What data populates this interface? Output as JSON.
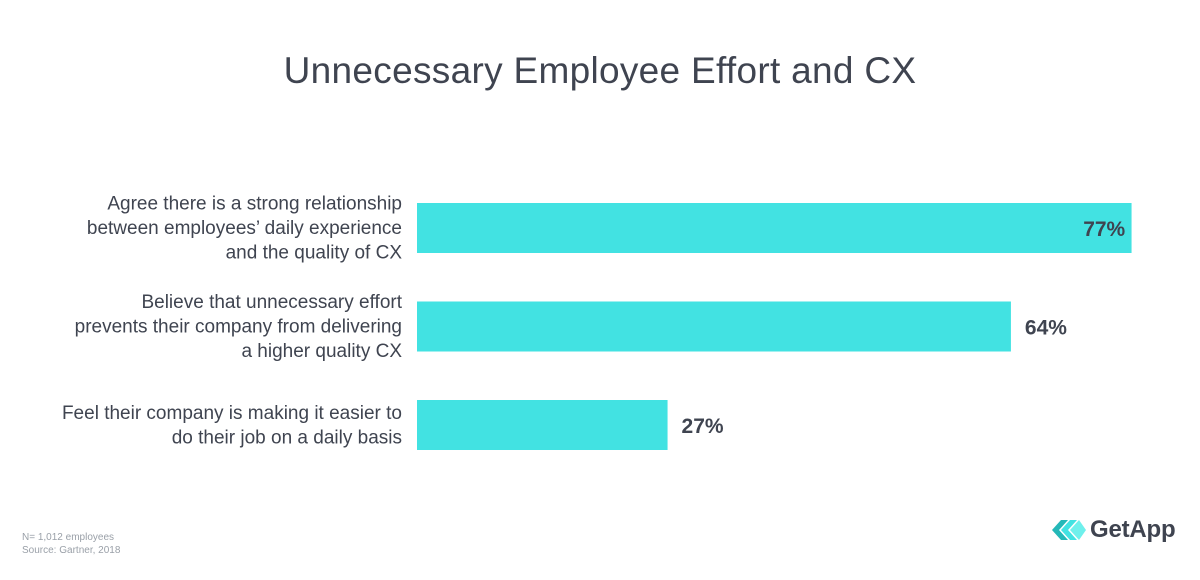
{
  "colors": {
    "bar": "#42e2e2",
    "text": "#3f4450",
    "footnote": "#9aa0a8",
    "logo_dark": "#24b8b8",
    "logo_light": "#42e2e2"
  },
  "chart_data": {
    "type": "bar",
    "orientation": "horizontal",
    "title": "Unnecessary Employee Effort and CX",
    "categories": [
      [
        "Agree there is a strong relationship",
        "between employees’ daily experience",
        "and the quality of CX"
      ],
      [
        "Believe that unnecessary effort",
        "prevents their company from delivering",
        "a higher quality CX"
      ],
      [
        "Feel their company is making it easier to",
        "do their job on a daily basis"
      ]
    ],
    "values": [
      77,
      64,
      27
    ],
    "value_labels": [
      "77%",
      "64%",
      "27%"
    ],
    "unit": "%",
    "xlim": [
      0,
      100
    ],
    "xlabel": "",
    "ylabel": "",
    "grid": false,
    "legend": "none"
  },
  "footnotes": {
    "sample": "N= 1,012 employees",
    "source": "Source: Gartner, 2018"
  },
  "brand": {
    "name": "GetApp",
    "icon": "getapp-chevrons-icon"
  }
}
